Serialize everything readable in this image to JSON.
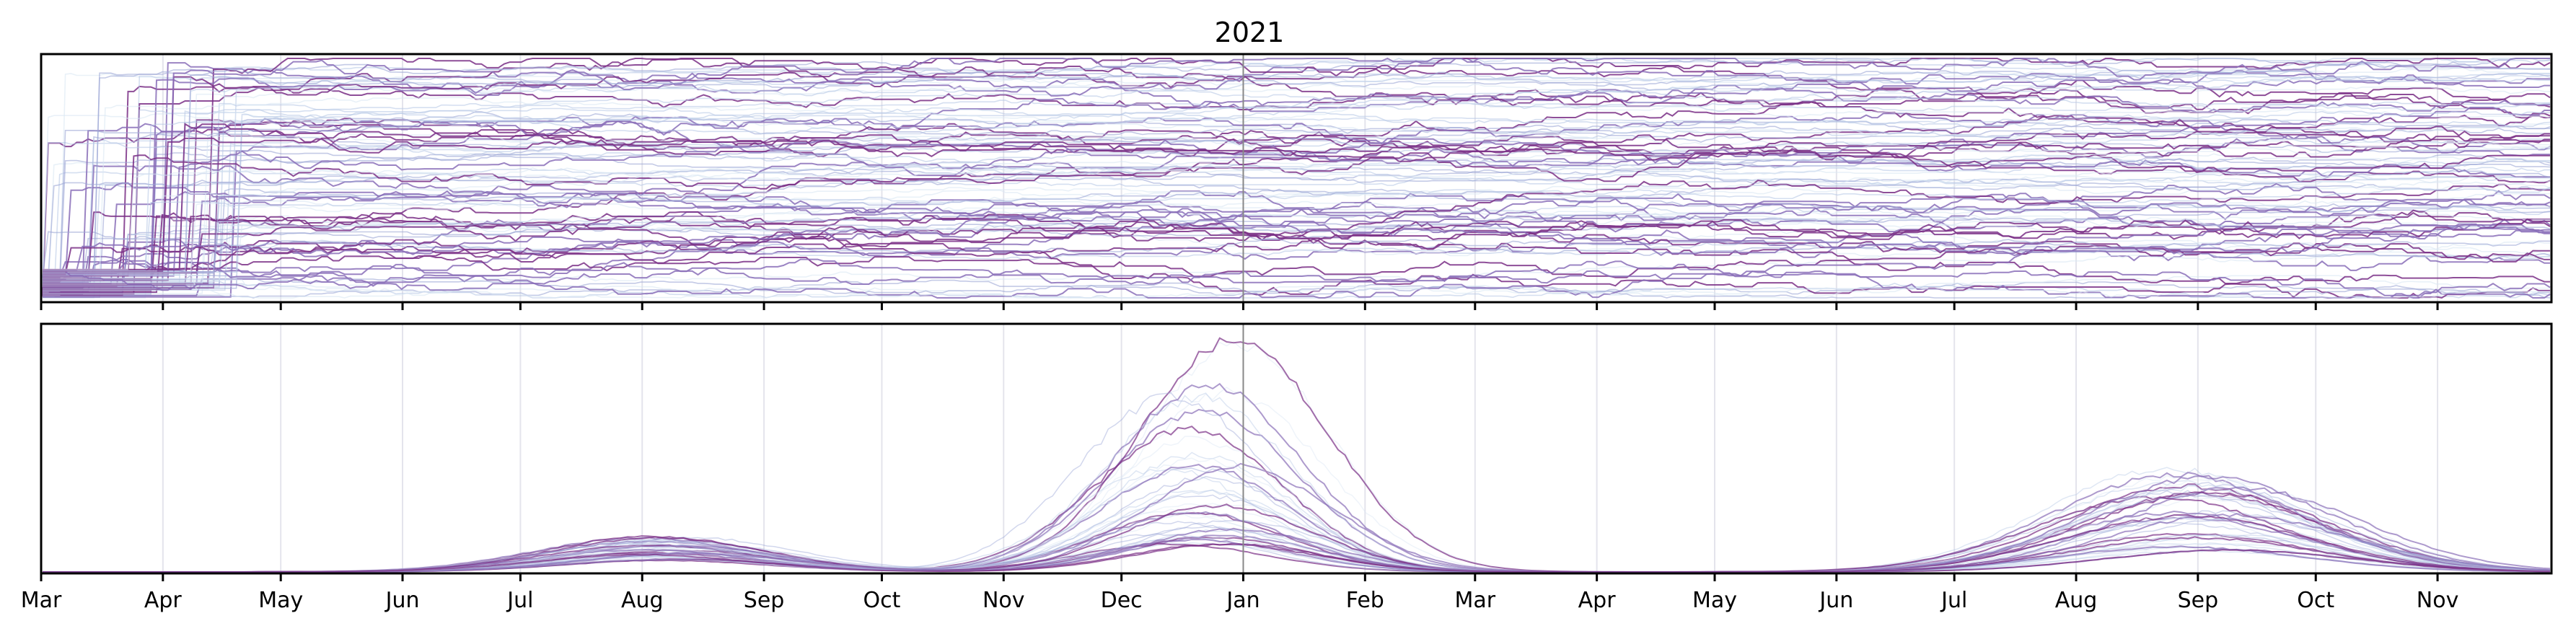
{
  "chart_data": [
    {
      "type": "line",
      "panel": "top",
      "title": "2021",
      "description_note": "",
      "xlabel": "",
      "ylabel": "",
      "y_ticks_shown": false,
      "x_range": [
        "2020-03-01",
        "2021-11-30"
      ],
      "x_tick_labels": [],
      "vertical_marker": "2021-01-01",
      "series_colors": [
        "#dbe7f3",
        "#b9c9e6",
        "#9ca6d6",
        "#8a6fb8",
        "#7a2f86"
      ],
      "series_count": 96,
      "grid": "vertical"
    },
    {
      "type": "line",
      "panel": "bottom",
      "title": "",
      "xlabel": "",
      "ylabel": "",
      "y_ticks_shown": false,
      "x_range": [
        "2020-03-01",
        "2021-11-30"
      ],
      "x_tick_labels": [
        "Mar",
        "Apr",
        "May",
        "Jun",
        "Jul",
        "Aug",
        "Sep",
        "Oct",
        "Nov",
        "Dec",
        "Jan",
        "Feb",
        "Mar",
        "Apr",
        "May",
        "Jun",
        "Jul",
        "Aug",
        "Sep",
        "Oct",
        "Nov"
      ],
      "vertical_marker": "2021-01-01",
      "waves": [
        {
          "peak_month": "Aug",
          "relative_height": 0.12
        },
        {
          "peak_month": "Dec",
          "relative_height": 1.0
        },
        {
          "peak_month": "Sep",
          "relative_height": 0.45
        }
      ],
      "series_colors": [
        "#dbe7f3",
        "#b9c9e6",
        "#9ca6d6",
        "#8a6fb8",
        "#7a2f86"
      ],
      "series_count": 40,
      "grid": "vertical"
    }
  ]
}
